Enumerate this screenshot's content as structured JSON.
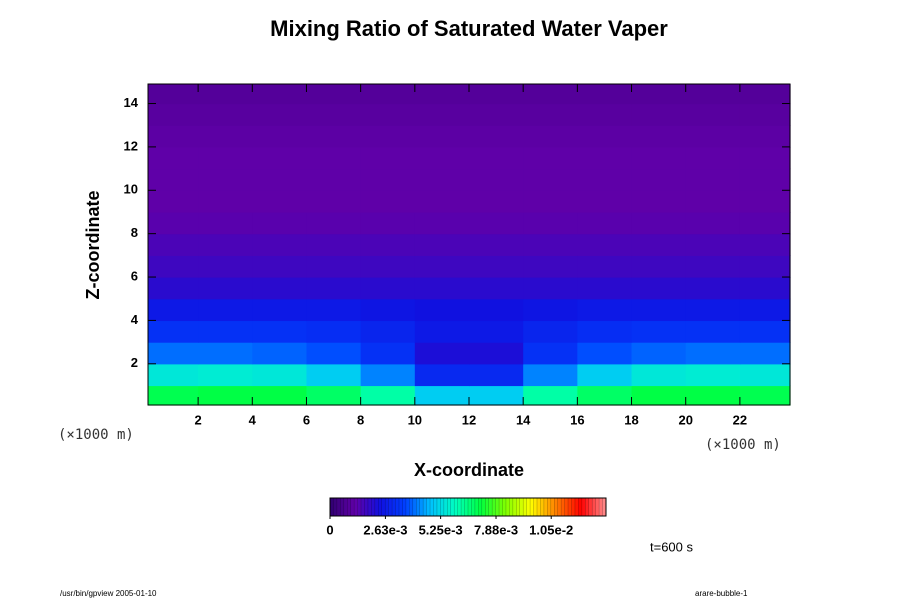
{
  "chart_data": {
    "type": "contour",
    "title": "Mixing Ratio of Saturated Water Vaper",
    "x_label": "X-coordinate",
    "y_label": "Z-coordinate",
    "x_units": "(×1000 m)",
    "y_units": "(×1000 m)",
    "xlim": [
      0.15,
      23.85
    ],
    "xticks": [
      2,
      4,
      6,
      8,
      10,
      12,
      14,
      16,
      18,
      20,
      22
    ],
    "ylim": [
      0.1,
      14.9
    ],
    "yticks": [
      2,
      4,
      6,
      8,
      10,
      12,
      14
    ],
    "x": [
      1,
      3,
      5,
      7,
      9,
      11,
      13,
      15,
      17,
      19,
      21,
      23
    ],
    "y": [
      0.5,
      1.5,
      2.5,
      3.5,
      4.5,
      5.5,
      6.5,
      7.5,
      8.5,
      9.5,
      10.5,
      11.5,
      12.5,
      13.5,
      14.5
    ],
    "z": [
      [
        0.007,
        0.0071,
        0.0071,
        0.0068,
        0.0062,
        0.005,
        0.005,
        0.0062,
        0.0068,
        0.0071,
        0.0071,
        0.007
      ],
      [
        0.0055,
        0.0056,
        0.0055,
        0.005,
        0.0042,
        0.003,
        0.003,
        0.0042,
        0.005,
        0.0055,
        0.0056,
        0.0055
      ],
      [
        0.004,
        0.004,
        0.0039,
        0.0037,
        0.0032,
        0.0022,
        0.0022,
        0.0032,
        0.0037,
        0.0039,
        0.004,
        0.004
      ],
      [
        0.0032,
        0.0032,
        0.0032,
        0.0031,
        0.0029,
        0.0026,
        0.0026,
        0.0029,
        0.0031,
        0.0032,
        0.0032,
        0.0032
      ],
      [
        0.0026,
        0.0026,
        0.0026,
        0.0026,
        0.0025,
        0.0024,
        0.0024,
        0.0025,
        0.0026,
        0.0026,
        0.0026,
        0.0026
      ],
      [
        0.002,
        0.002,
        0.002,
        0.002,
        0.002,
        0.002,
        0.002,
        0.002,
        0.002,
        0.002,
        0.002,
        0.002
      ],
      [
        0.0017,
        0.0017,
        0.0017,
        0.0017,
        0.0017,
        0.0017,
        0.0017,
        0.0017,
        0.0017,
        0.0017,
        0.0017,
        0.0017
      ],
      [
        0.0015,
        0.0015,
        0.0015,
        0.0015,
        0.0015,
        0.0015,
        0.0015,
        0.0015,
        0.0015,
        0.0015,
        0.0015,
        0.0015
      ],
      [
        0.0013,
        0.0013,
        0.0013,
        0.0013,
        0.0013,
        0.0013,
        0.0013,
        0.0013,
        0.0013,
        0.0013,
        0.0013,
        0.0013
      ],
      [
        0.0012,
        0.0012,
        0.0012,
        0.0012,
        0.0012,
        0.0012,
        0.0012,
        0.0012,
        0.0012,
        0.0012,
        0.0012,
        0.0012
      ],
      [
        0.0012,
        0.0012,
        0.0012,
        0.0012,
        0.0012,
        0.0012,
        0.0012,
        0.0012,
        0.0012,
        0.0012,
        0.0012,
        0.0012
      ],
      [
        0.0012,
        0.0012,
        0.0012,
        0.0012,
        0.0012,
        0.0012,
        0.0012,
        0.0012,
        0.0012,
        0.0012,
        0.0012,
        0.0012
      ],
      [
        0.0011,
        0.0011,
        0.0011,
        0.0011,
        0.0011,
        0.0011,
        0.0011,
        0.0011,
        0.0011,
        0.0011,
        0.0011,
        0.0011
      ],
      [
        0.001,
        0.001,
        0.001,
        0.001,
        0.001,
        0.001,
        0.001,
        0.001,
        0.001,
        0.001,
        0.001,
        0.001
      ],
      [
        0.0009,
        0.0009,
        0.0009,
        0.0009,
        0.0009,
        0.0009,
        0.0009,
        0.0009,
        0.0009,
        0.0009,
        0.0009,
        0.0009
      ]
    ],
    "zlim": [
      0,
      0.0131
    ],
    "zticks": [
      0,
      {
        "value": 0.00263,
        "label": "2.63e-3"
      },
      {
        "value": 0.00525,
        "label": "5.25e-3"
      },
      {
        "value": 0.00788,
        "label": "7.88e-3"
      },
      {
        "value": 0.0105,
        "label": "1.05e-2"
      }
    ],
    "colormap": [
      "#300070",
      "#6000a8",
      "#1010e0",
      "#0040ff",
      "#00c0ff",
      "#00ffc0",
      "#00ff40",
      "#80ff00",
      "#ffff00",
      "#ff8000",
      "#ff0000",
      "#ff9090"
    ],
    "time_label": "t=600 s",
    "footer_left": "/usr/bin/gpview 2005-01-10",
    "footer_right": "arare-bubble-1"
  }
}
